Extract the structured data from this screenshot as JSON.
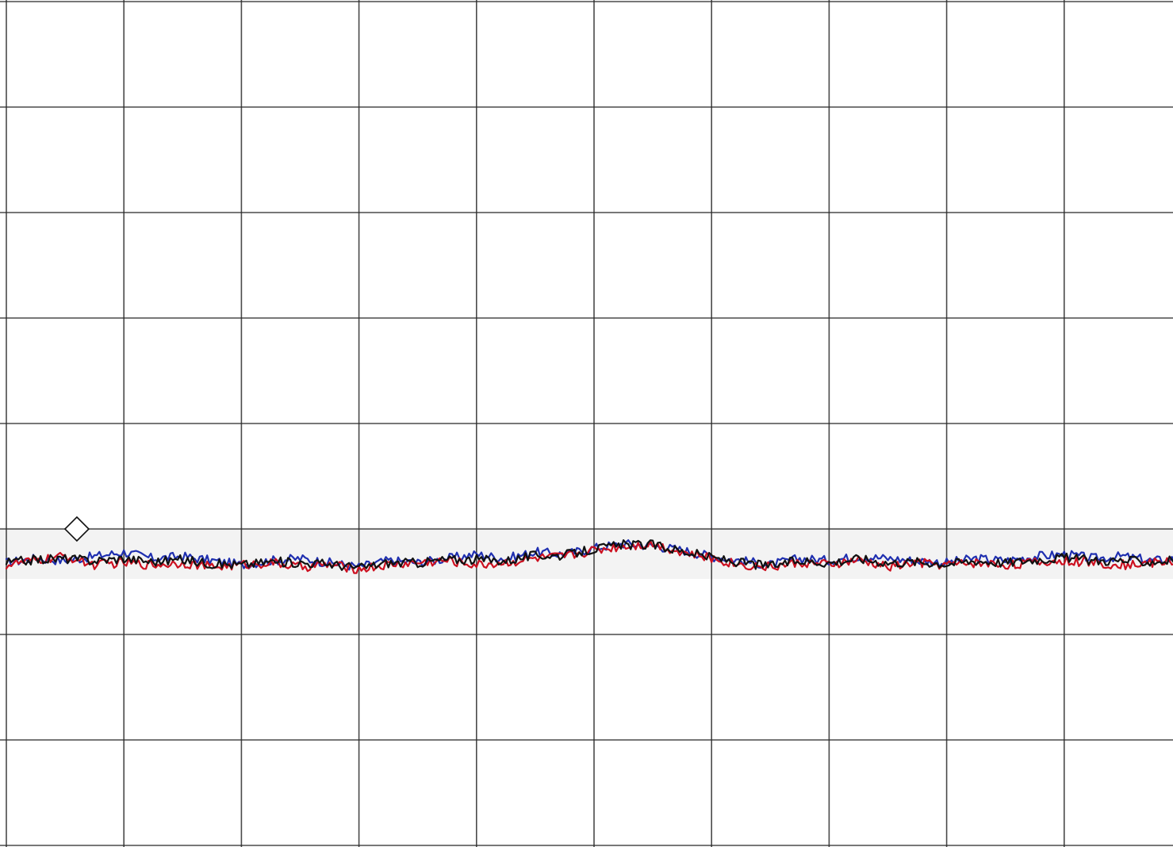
{
  "chart_data": {
    "type": "line",
    "title": "",
    "xlabel": "",
    "ylabel": "",
    "grid": true,
    "grid_divisions": {
      "x": 10,
      "y": 8
    },
    "xlim": [
      0,
      10
    ],
    "ylim": [
      0,
      8
    ],
    "x": [
      0,
      0.25,
      0.5,
      0.75,
      1,
      1.25,
      1.5,
      1.75,
      2,
      2.25,
      2.5,
      2.75,
      3,
      3.25,
      3.5,
      3.75,
      4,
      4.25,
      4.5,
      4.75,
      5,
      5.25,
      5.5,
      5.75,
      6,
      6.25,
      6.5,
      6.75,
      7,
      7.25,
      7.5,
      7.75,
      8,
      8.25,
      8.5,
      8.75,
      9,
      9.25,
      9.5,
      9.75,
      10
    ],
    "series": [
      {
        "color": "#1f2fb0",
        "values": [
          2.68,
          2.72,
          2.7,
          2.74,
          2.78,
          2.72,
          2.74,
          2.7,
          2.66,
          2.7,
          2.72,
          2.68,
          2.64,
          2.7,
          2.68,
          2.72,
          2.76,
          2.72,
          2.78,
          2.76,
          2.82,
          2.86,
          2.84,
          2.8,
          2.74,
          2.7,
          2.66,
          2.72,
          2.7,
          2.74,
          2.72,
          2.7,
          2.68,
          2.72,
          2.7,
          2.74,
          2.76,
          2.72,
          2.74,
          2.7,
          2.72
        ]
      },
      {
        "color": "#cc1020",
        "values": [
          2.66,
          2.7,
          2.74,
          2.66,
          2.68,
          2.66,
          2.68,
          2.64,
          2.66,
          2.68,
          2.64,
          2.66,
          2.62,
          2.66,
          2.68,
          2.7,
          2.66,
          2.68,
          2.72,
          2.74,
          2.8,
          2.84,
          2.86,
          2.78,
          2.72,
          2.66,
          2.64,
          2.68,
          2.66,
          2.7,
          2.64,
          2.68,
          2.66,
          2.68,
          2.66,
          2.68,
          2.7,
          2.68,
          2.66,
          2.68,
          2.7
        ]
      },
      {
        "color": "#111111",
        "values": [
          2.68,
          2.71,
          2.72,
          2.7,
          2.72,
          2.69,
          2.71,
          2.67,
          2.66,
          2.69,
          2.68,
          2.67,
          2.63,
          2.68,
          2.68,
          2.71,
          2.71,
          2.7,
          2.75,
          2.75,
          2.81,
          2.85,
          2.85,
          2.79,
          2.73,
          2.68,
          2.65,
          2.7,
          2.68,
          2.72,
          2.68,
          2.69,
          2.67,
          2.7,
          2.68,
          2.71,
          2.73,
          2.7,
          2.7,
          2.69,
          2.71
        ]
      }
    ],
    "marker": {
      "shape": "diamond",
      "x": 0.6,
      "y": 3.0
    }
  }
}
